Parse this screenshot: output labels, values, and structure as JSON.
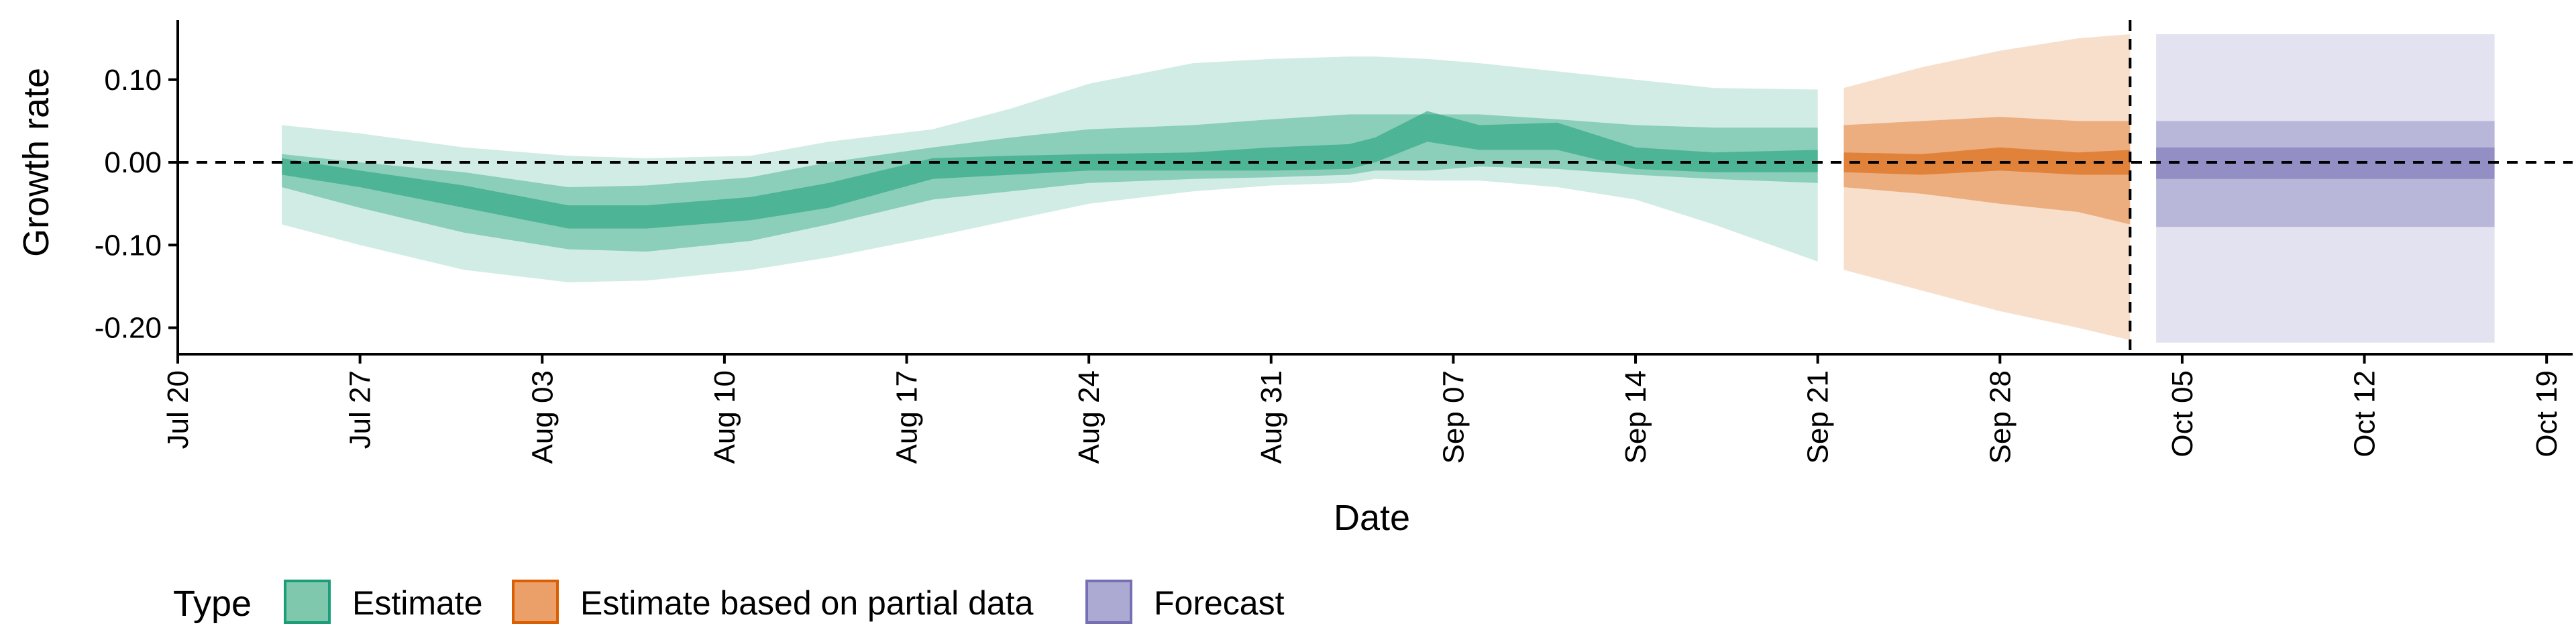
{
  "chart_data": {
    "type": "area",
    "title": "",
    "xlabel": "Date",
    "ylabel": "Growth rate",
    "x_ticks": [
      "Jul 20",
      "Jul 27",
      "Aug 03",
      "Aug 10",
      "Aug 17",
      "Aug 24",
      "Aug 31",
      "Sep 07",
      "Sep 14",
      "Sep 21",
      "Sep 28",
      "Oct 05",
      "Oct 12",
      "Oct 19"
    ],
    "y_ticks": [
      "0.10",
      "0.00",
      "-0.10",
      "-0.20"
    ],
    "y_tick_values": [
      0.1,
      0.0,
      -0.1,
      -0.2
    ],
    "xlim": [
      "2020-07-20",
      "2020-10-20"
    ],
    "ylim": [
      -0.232,
      0.172
    ],
    "reference_lines": {
      "horizontal_y": 0.0,
      "vertical_x": "2020-10-03"
    },
    "legend": {
      "title": "Type",
      "position": "bottom",
      "items": [
        {
          "label": "Estimate",
          "fill": "#7fc8ae",
          "stroke": "#1b9e77"
        },
        {
          "label": "Estimate based on partial data",
          "fill": "#eba06a",
          "stroke": "#d95f02"
        },
        {
          "label": "Forecast",
          "fill": "#aca9d3",
          "stroke": "#7570b3"
        }
      ]
    },
    "series": [
      {
        "name": "Estimate",
        "color": "#1b9e77",
        "dates": [
          "2020-07-24",
          "2020-07-27",
          "2020-07-31",
          "2020-08-04",
          "2020-08-07",
          "2020-08-11",
          "2020-08-14",
          "2020-08-18",
          "2020-08-21",
          "2020-08-24",
          "2020-08-28",
          "2020-08-31",
          "2020-09-03",
          "2020-09-04",
          "2020-09-06",
          "2020-09-08",
          "2020-09-11",
          "2020-09-14",
          "2020-09-17",
          "2020-09-21"
        ],
        "median": [
          -0.005,
          -0.02,
          -0.04,
          -0.065,
          -0.065,
          -0.055,
          -0.04,
          -0.008,
          -0.005,
          0.0,
          0.002,
          0.005,
          0.008,
          0.015,
          0.045,
          0.03,
          0.032,
          0.005,
          0.0,
          0.002
        ],
        "lower_20": [
          -0.015,
          -0.03,
          -0.055,
          -0.08,
          -0.08,
          -0.07,
          -0.055,
          -0.02,
          -0.015,
          -0.01,
          -0.01,
          -0.01,
          -0.008,
          0.0,
          0.025,
          0.015,
          0.015,
          -0.008,
          -0.012,
          -0.012
        ],
        "upper_20": [
          0.005,
          -0.01,
          -0.028,
          -0.052,
          -0.052,
          -0.042,
          -0.025,
          0.005,
          0.008,
          0.01,
          0.012,
          0.018,
          0.022,
          0.03,
          0.062,
          0.045,
          0.048,
          0.018,
          0.012,
          0.015
        ],
        "lower_50": [
          -0.03,
          -0.055,
          -0.085,
          -0.105,
          -0.108,
          -0.095,
          -0.075,
          -0.045,
          -0.035,
          -0.025,
          -0.02,
          -0.018,
          -0.015,
          -0.01,
          -0.01,
          -0.005,
          -0.008,
          -0.015,
          -0.02,
          -0.025
        ],
        "upper_50": [
          0.01,
          0.0,
          -0.012,
          -0.03,
          -0.028,
          -0.018,
          0.0,
          0.018,
          0.03,
          0.04,
          0.045,
          0.052,
          0.058,
          0.058,
          0.058,
          0.058,
          0.052,
          0.045,
          0.042,
          0.042
        ],
        "lower_90": [
          -0.075,
          -0.1,
          -0.13,
          -0.145,
          -0.143,
          -0.13,
          -0.115,
          -0.09,
          -0.07,
          -0.05,
          -0.035,
          -0.028,
          -0.025,
          -0.02,
          -0.022,
          -0.022,
          -0.03,
          -0.045,
          -0.075,
          -0.12
        ],
        "upper_90": [
          0.045,
          0.035,
          0.018,
          0.008,
          0.005,
          0.008,
          0.025,
          0.04,
          0.065,
          0.095,
          0.12,
          0.125,
          0.128,
          0.128,
          0.125,
          0.12,
          0.11,
          0.1,
          0.09,
          0.088
        ]
      },
      {
        "name": "Estimate based on partial data",
        "color": "#d95f02",
        "dates": [
          "2020-09-22",
          "2020-09-25",
          "2020-09-28",
          "2020-10-01",
          "2020-10-03"
        ],
        "median": [
          0.0,
          -0.002,
          0.005,
          0.0,
          0.002
        ],
        "lower_20": [
          -0.012,
          -0.015,
          -0.01,
          -0.015,
          -0.015
        ],
        "upper_20": [
          0.012,
          0.01,
          0.018,
          0.012,
          0.015
        ],
        "lower_50": [
          -0.03,
          -0.038,
          -0.05,
          -0.06,
          -0.075
        ],
        "upper_50": [
          0.045,
          0.05,
          0.055,
          0.05,
          0.05
        ],
        "lower_90": [
          -0.13,
          -0.155,
          -0.18,
          -0.2,
          -0.215
        ],
        "upper_90": [
          0.09,
          0.115,
          0.135,
          0.15,
          0.155
        ]
      },
      {
        "name": "Forecast",
        "color": "#7570b3",
        "dates": [
          "2020-10-04",
          "2020-10-17"
        ],
        "median": [
          0.0,
          0.0
        ],
        "lower_20": [
          -0.02,
          -0.02
        ],
        "upper_20": [
          0.018,
          0.018
        ],
        "lower_50": [
          -0.078,
          -0.078
        ],
        "upper_50": [
          0.05,
          0.05
        ],
        "lower_90": [
          -0.218,
          -0.218
        ],
        "upper_90": [
          0.155,
          0.155
        ]
      }
    ]
  }
}
